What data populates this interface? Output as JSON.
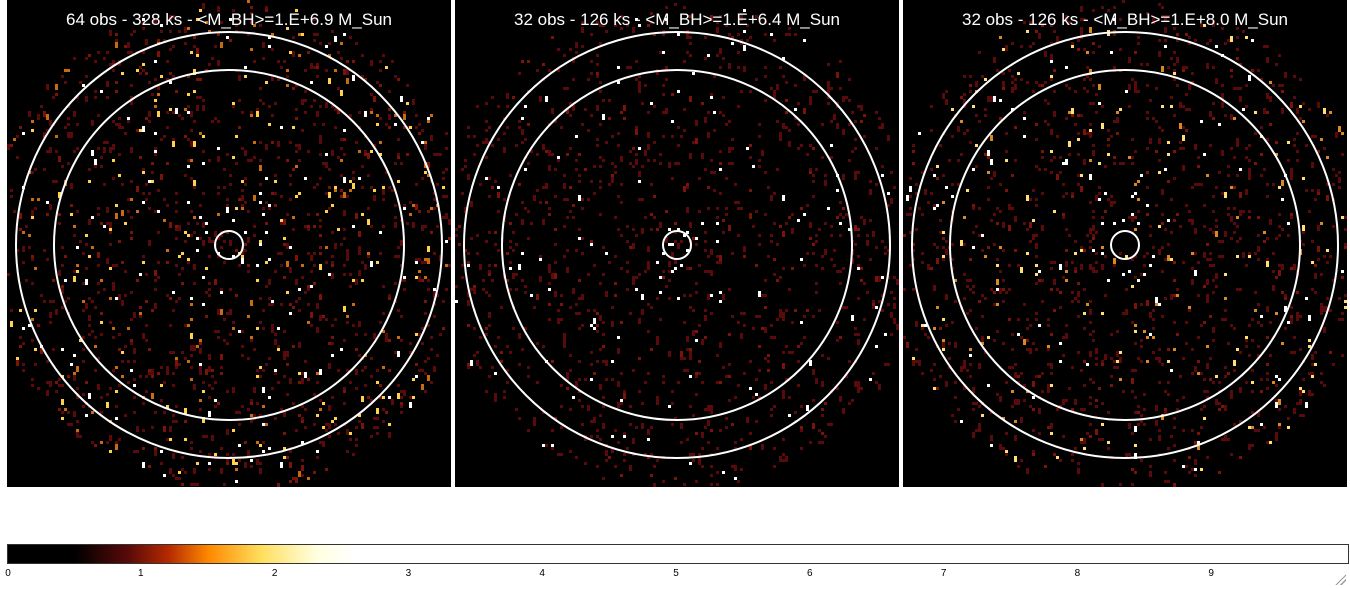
{
  "panels": [
    {
      "title": "64 obs - 328 ks - <M_BH>=1.E+6.9 M_Sun",
      "intensity": "high"
    },
    {
      "title": "32 obs - 126 ks - <M_BH>=1.E+6.4 M_Sun",
      "intensity": "low"
    },
    {
      "title": "32 obs - 126 ks - <M_BH>=1.E+8.0 M_Sun",
      "intensity": "medium"
    }
  ],
  "colorbar": {
    "ticks": [
      "0",
      "1",
      "2",
      "3",
      "4",
      "5",
      "6",
      "7",
      "8",
      "9"
    ],
    "colormap": [
      "#000000",
      "#5a0a0a",
      "#b52a00",
      "#ff8a00",
      "#ffe060",
      "#ffffe0",
      "#ffffff"
    ]
  },
  "colors": {
    "background": "#000000",
    "circle": "#ffffff"
  }
}
